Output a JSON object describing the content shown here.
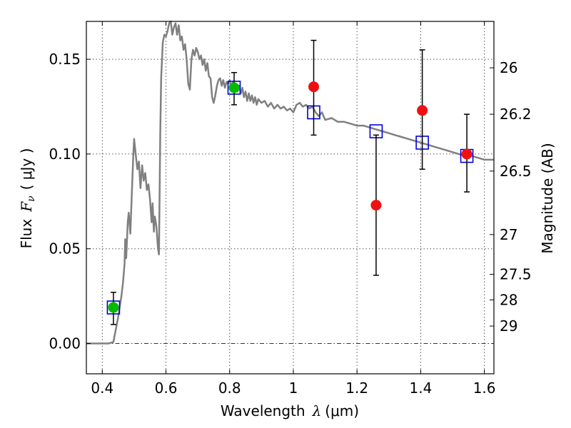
{
  "chart_data": {
    "type": "scatter",
    "title": "",
    "xlabel": "Wavelength",
    "xlabel_symbol": "λ",
    "xlabel_unit": "(μm)",
    "ylabel": "Flux",
    "ylabel_symbol": "F",
    "ylabel_subscript": "ν",
    "ylabel_unit": "( μJy )",
    "y2label": "Magnitude (AB)",
    "xlim": [
      0.35,
      1.63
    ],
    "ylim": [
      -0.016,
      0.17
    ],
    "grid": true,
    "x_ticks": [
      0.4,
      0.6,
      0.8,
      1.0,
      1.2,
      1.4,
      1.6
    ],
    "x_tick_labels": [
      "0.4",
      "0.6",
      "0.8",
      "1",
      "1.2",
      "1.4",
      "1.6"
    ],
    "y_ticks": [
      0.0,
      0.05,
      0.1,
      0.15
    ],
    "y_tick_labels": [
      "0.00",
      "0.05",
      "0.10",
      "0.15"
    ],
    "y2_tick_labels": [
      {
        "label": "26",
        "flux": 0.1455
      },
      {
        "label": "26.2",
        "flux": 0.121
      },
      {
        "label": "26.5",
        "flux": 0.091
      },
      {
        "label": "27",
        "flux": 0.0575
      },
      {
        "label": "27.5",
        "flux": 0.0365
      },
      {
        "label": "28",
        "flux": 0.023
      },
      {
        "label": "29",
        "flux": 0.0092
      }
    ],
    "zero_line": 0.0,
    "colors": {
      "model": "#808080",
      "detections_green": "#00bb00",
      "detections_red": "#ee1111",
      "model_boxes": "#0000dd",
      "error_bars": "#000000"
    },
    "model_sed": [
      [
        0.35,
        0.0
      ],
      [
        0.42,
        0.0
      ],
      [
        0.435,
        0.0008
      ],
      [
        0.45,
        0.014
      ],
      [
        0.46,
        0.025
      ],
      [
        0.465,
        0.032
      ],
      [
        0.47,
        0.042
      ],
      [
        0.472,
        0.055
      ],
      [
        0.475,
        0.045
      ],
      [
        0.48,
        0.064
      ],
      [
        0.483,
        0.069
      ],
      [
        0.488,
        0.058
      ],
      [
        0.492,
        0.075
      ],
      [
        0.497,
        0.098
      ],
      [
        0.5,
        0.108
      ],
      [
        0.505,
        0.1
      ],
      [
        0.51,
        0.092
      ],
      [
        0.515,
        0.096
      ],
      [
        0.52,
        0.082
      ],
      [
        0.525,
        0.094
      ],
      [
        0.53,
        0.086
      ],
      [
        0.535,
        0.09
      ],
      [
        0.54,
        0.081
      ],
      [
        0.545,
        0.084
      ],
      [
        0.55,
        0.076
      ],
      [
        0.555,
        0.064
      ],
      [
        0.558,
        0.074
      ],
      [
        0.562,
        0.059
      ],
      [
        0.565,
        0.067
      ],
      [
        0.57,
        0.062
      ],
      [
        0.575,
        0.05
      ],
      [
        0.578,
        0.047
      ],
      [
        0.582,
        0.11
      ],
      [
        0.585,
        0.14
      ],
      [
        0.59,
        0.159
      ],
      [
        0.595,
        0.163
      ],
      [
        0.6,
        0.162
      ],
      [
        0.605,
        0.165
      ],
      [
        0.61,
        0.169
      ],
      [
        0.615,
        0.17
      ],
      [
        0.62,
        0.163
      ],
      [
        0.625,
        0.167
      ],
      [
        0.63,
        0.169
      ],
      [
        0.635,
        0.163
      ],
      [
        0.64,
        0.168
      ],
      [
        0.645,
        0.16
      ],
      [
        0.65,
        0.162
      ],
      [
        0.655,
        0.155
      ],
      [
        0.66,
        0.158
      ],
      [
        0.665,
        0.15
      ],
      [
        0.67,
        0.137
      ],
      [
        0.675,
        0.134
      ],
      [
        0.68,
        0.15
      ],
      [
        0.685,
        0.155
      ],
      [
        0.69,
        0.152
      ],
      [
        0.695,
        0.156
      ],
      [
        0.7,
        0.154
      ],
      [
        0.705,
        0.15
      ],
      [
        0.71,
        0.152
      ],
      [
        0.715,
        0.147
      ],
      [
        0.72,
        0.15
      ],
      [
        0.725,
        0.144
      ],
      [
        0.73,
        0.148
      ],
      [
        0.735,
        0.141
      ],
      [
        0.74,
        0.14
      ],
      [
        0.745,
        0.13
      ],
      [
        0.75,
        0.127
      ],
      [
        0.755,
        0.131
      ],
      [
        0.76,
        0.136
      ],
      [
        0.765,
        0.139
      ],
      [
        0.77,
        0.14
      ],
      [
        0.775,
        0.136
      ],
      [
        0.78,
        0.139
      ],
      [
        0.785,
        0.135
      ],
      [
        0.79,
        0.138
      ],
      [
        0.795,
        0.137
      ],
      [
        0.8,
        0.139
      ],
      [
        0.805,
        0.135
      ],
      [
        0.81,
        0.138
      ],
      [
        0.815,
        0.134
      ],
      [
        0.82,
        0.137
      ],
      [
        0.825,
        0.133
      ],
      [
        0.83,
        0.136
      ],
      [
        0.835,
        0.132
      ],
      [
        0.84,
        0.135
      ],
      [
        0.845,
        0.13
      ],
      [
        0.85,
        0.133
      ],
      [
        0.855,
        0.128
      ],
      [
        0.86,
        0.132
      ],
      [
        0.865,
        0.128
      ],
      [
        0.87,
        0.131
      ],
      [
        0.875,
        0.127
      ],
      [
        0.88,
        0.13
      ],
      [
        0.885,
        0.126
      ],
      [
        0.89,
        0.129
      ],
      [
        0.9,
        0.127
      ],
      [
        0.91,
        0.128
      ],
      [
        0.92,
        0.125
      ],
      [
        0.93,
        0.127
      ],
      [
        0.94,
        0.124
      ],
      [
        0.95,
        0.126
      ],
      [
        0.96,
        0.124
      ],
      [
        0.97,
        0.125
      ],
      [
        0.98,
        0.123
      ],
      [
        0.99,
        0.124
      ],
      [
        1.0,
        0.122
      ],
      [
        1.01,
        0.126
      ],
      [
        1.02,
        0.127
      ],
      [
        1.03,
        0.125
      ],
      [
        1.04,
        0.126
      ],
      [
        1.05,
        0.124
      ],
      [
        1.06,
        0.125
      ],
      [
        1.07,
        0.122
      ],
      [
        1.08,
        0.12
      ],
      [
        1.09,
        0.122
      ],
      [
        1.1,
        0.118
      ],
      [
        1.12,
        0.119
      ],
      [
        1.14,
        0.117
      ],
      [
        1.16,
        0.117
      ],
      [
        1.18,
        0.116
      ],
      [
        1.2,
        0.115
      ],
      [
        1.22,
        0.115
      ],
      [
        1.24,
        0.114
      ],
      [
        1.26,
        0.113
      ],
      [
        1.28,
        0.112
      ],
      [
        1.3,
        0.111
      ],
      [
        1.32,
        0.11
      ],
      [
        1.34,
        0.109
      ],
      [
        1.36,
        0.108
      ],
      [
        1.38,
        0.107
      ],
      [
        1.4,
        0.106
      ],
      [
        1.42,
        0.105
      ],
      [
        1.44,
        0.104
      ],
      [
        1.46,
        0.103
      ],
      [
        1.48,
        0.102
      ],
      [
        1.5,
        0.101
      ],
      [
        1.52,
        0.1
      ],
      [
        1.54,
        0.099
      ],
      [
        1.56,
        0.099
      ],
      [
        1.58,
        0.098
      ],
      [
        1.6,
        0.097
      ],
      [
        1.63,
        0.097
      ]
    ],
    "model_boxes": [
      {
        "x": 0.435,
        "y": 0.019
      },
      {
        "x": 0.814,
        "y": 0.135
      },
      {
        "x": 1.064,
        "y": 0.122
      },
      {
        "x": 1.26,
        "y": 0.112
      },
      {
        "x": 1.405,
        "y": 0.106
      },
      {
        "x": 1.545,
        "y": 0.099
      }
    ],
    "observations": [
      {
        "x": 0.435,
        "y": 0.019,
        "yerr_low": 0.01,
        "yerr_high": 0.027,
        "color": "green"
      },
      {
        "x": 0.814,
        "y": 0.135,
        "yerr_low": 0.126,
        "yerr_high": 0.143,
        "color": "green"
      },
      {
        "x": 1.064,
        "y": 0.1355,
        "yerr_low": 0.11,
        "yerr_high": 0.16,
        "color": "red"
      },
      {
        "x": 1.26,
        "y": 0.073,
        "yerr_low": 0.036,
        "yerr_high": 0.11,
        "color": "red"
      },
      {
        "x": 1.405,
        "y": 0.123,
        "yerr_low": 0.092,
        "yerr_high": 0.155,
        "color": "red"
      },
      {
        "x": 1.545,
        "y": 0.1,
        "yerr_low": 0.08,
        "yerr_high": 0.121,
        "color": "red"
      }
    ]
  }
}
